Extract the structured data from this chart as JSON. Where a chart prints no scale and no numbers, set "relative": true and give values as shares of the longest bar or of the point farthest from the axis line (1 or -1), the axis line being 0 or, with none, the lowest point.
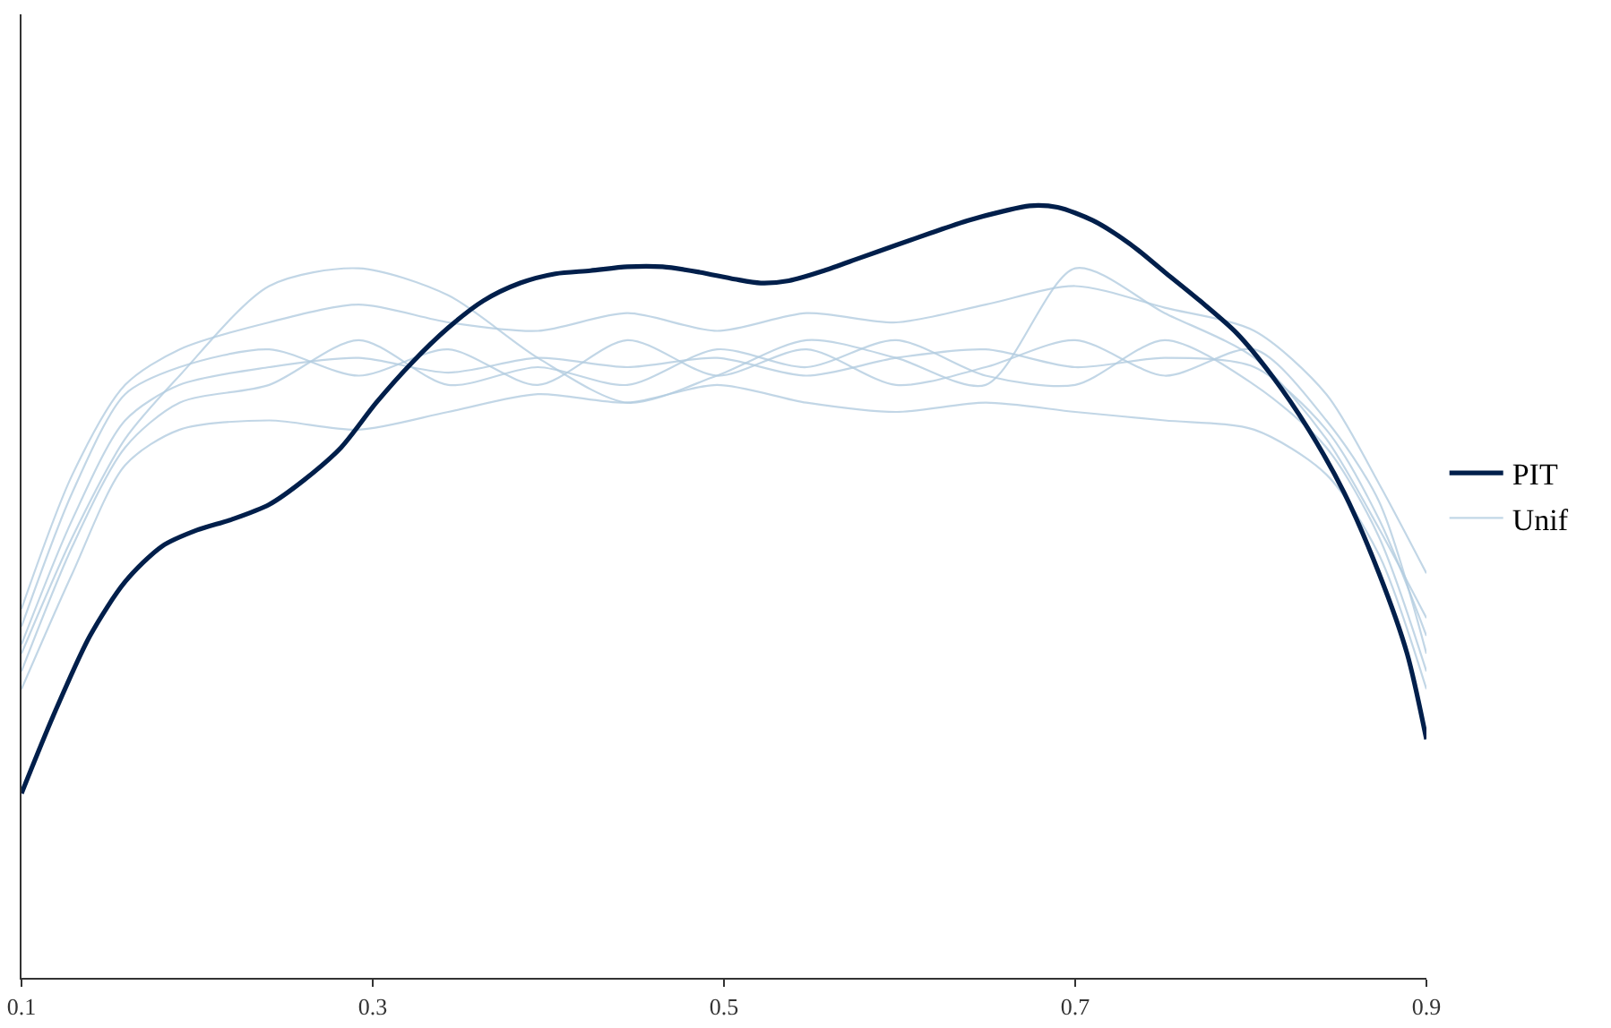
{
  "chart_data": {
    "type": "line",
    "relative": true,
    "xlim": [
      0.1,
      0.9
    ],
    "xticks": [
      0.1,
      0.3,
      0.5,
      0.7,
      0.9
    ],
    "tick_labels": "x",
    "grid": false,
    "legend": "right",
    "marker": "none",
    "line_style": "solid",
    "series": [
      {
        "name": "PIT",
        "color": "#011f4b",
        "x": [
          0.1,
          0.118,
          0.139,
          0.159,
          0.18,
          0.2,
          0.22,
          0.241,
          0.261,
          0.282,
          0.302,
          0.322,
          0.343,
          0.363,
          0.384,
          0.404,
          0.424,
          0.445,
          0.465,
          0.486,
          0.506,
          0.521,
          0.537,
          0.557,
          0.578,
          0.598,
          0.618,
          0.639,
          0.659,
          0.674,
          0.69,
          0.71,
          0.731,
          0.751,
          0.771,
          0.792,
          0.812,
          0.833,
          0.853,
          0.873,
          0.889,
          0.9
        ],
        "values": [
          0.239,
          0.339,
          0.443,
          0.513,
          0.559,
          0.58,
          0.594,
          0.613,
          0.645,
          0.687,
          0.745,
          0.796,
          0.842,
          0.877,
          0.9,
          0.912,
          0.916,
          0.921,
          0.921,
          0.914,
          0.905,
          0.9,
          0.903,
          0.916,
          0.933,
          0.949,
          0.965,
          0.981,
          0.993,
          1,
          0.998,
          0.981,
          0.951,
          0.914,
          0.877,
          0.835,
          0.78,
          0.71,
          0.629,
          0.524,
          0.42,
          0.309
        ]
      },
      {
        "name": "Unif",
        "color": "#b3cde0",
        "x": [
          0.1,
          0.129,
          0.159,
          0.19,
          0.241,
          0.292,
          0.343,
          0.394,
          0.445,
          0.496,
          0.547,
          0.598,
          0.649,
          0.7,
          0.751,
          0.802,
          0.843,
          0.873,
          0.9
        ],
        "values": [
          0.478,
          0.652,
          0.768,
          0.814,
          0.849,
          0.872,
          0.849,
          0.838,
          0.861,
          0.838,
          0.861,
          0.849,
          0.872,
          0.896,
          0.868,
          0.838,
          0.756,
          0.64,
          0.524
        ]
      },
      {
        "color": "#b3cde0",
        "x": [
          0.1,
          0.129,
          0.159,
          0.19,
          0.241,
          0.292,
          0.343,
          0.394,
          0.445,
          0.496,
          0.547,
          0.598,
          0.649,
          0.7,
          0.751,
          0.802,
          0.843,
          0.873,
          0.9
        ],
        "values": [
          0.374,
          0.524,
          0.664,
          0.71,
          0.722,
          0.71,
          0.733,
          0.756,
          0.745,
          0.768,
          0.745,
          0.733,
          0.745,
          0.733,
          0.722,
          0.71,
          0.652,
          0.548,
          0.374
        ]
      },
      {
        "color": "#b3cde0",
        "x": [
          0.1,
          0.129,
          0.159,
          0.19,
          0.241,
          0.292,
          0.343,
          0.394,
          0.445,
          0.496,
          0.547,
          0.598,
          0.649,
          0.7,
          0.751,
          0.802,
          0.843,
          0.873,
          0.9
        ],
        "values": [
          0.432,
          0.594,
          0.722,
          0.768,
          0.791,
          0.803,
          0.784,
          0.803,
          0.791,
          0.803,
          0.78,
          0.803,
          0.814,
          0.791,
          0.803,
          0.791,
          0.71,
          0.594,
          0.443
        ]
      },
      {
        "color": "#b3cde0",
        "x": [
          0.1,
          0.129,
          0.159,
          0.19,
          0.241,
          0.292,
          0.343,
          0.394,
          0.445,
          0.496,
          0.547,
          0.598,
          0.649,
          0.7,
          0.751,
          0.802,
          0.843,
          0.873,
          0.9
        ],
        "values": [
          0.455,
          0.629,
          0.756,
          0.791,
          0.814,
          0.78,
          0.814,
          0.768,
          0.826,
          0.78,
          0.814,
          0.768,
          0.791,
          0.826,
          0.78,
          0.814,
          0.722,
          0.617,
          0.42
        ]
      },
      {
        "color": "#b3cde0",
        "x": [
          0.1,
          0.129,
          0.159,
          0.19,
          0.241,
          0.292,
          0.343,
          0.394,
          0.445,
          0.496,
          0.547,
          0.598,
          0.649,
          0.7,
          0.751,
          0.802,
          0.843,
          0.873,
          0.9
        ],
        "values": [
          0.397,
          0.559,
          0.687,
          0.745,
          0.768,
          0.826,
          0.768,
          0.791,
          0.768,
          0.814,
          0.791,
          0.826,
          0.78,
          0.768,
          0.826,
          0.768,
          0.687,
          0.571,
          0.397
        ]
      },
      {
        "color": "#b3cde0",
        "x": [
          0.1,
          0.129,
          0.159,
          0.19,
          0.241,
          0.292,
          0.343,
          0.394,
          0.445,
          0.496,
          0.547,
          0.598,
          0.649,
          0.7,
          0.751,
          0.802,
          0.843,
          0.873,
          0.9
        ],
        "values": [
          0.42,
          0.571,
          0.698,
          0.78,
          0.896,
          0.919,
          0.884,
          0.803,
          0.745,
          0.78,
          0.826,
          0.803,
          0.768,
          0.919,
          0.861,
          0.803,
          0.698,
          0.582,
          0.466
        ]
      }
    ]
  }
}
